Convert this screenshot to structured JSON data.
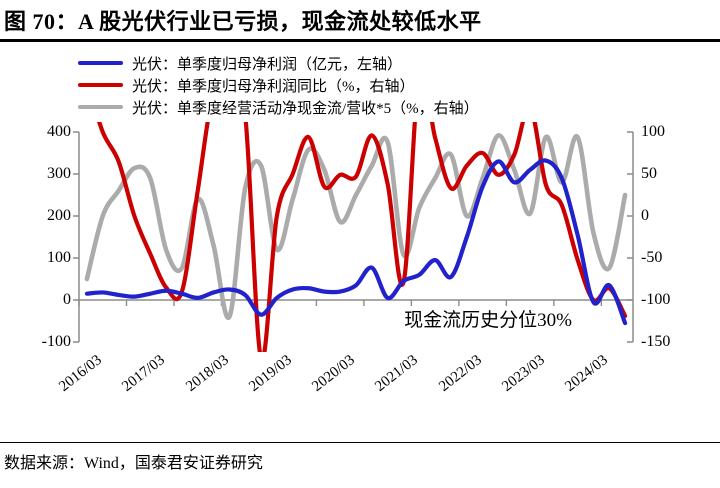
{
  "figure": {
    "title": "图 70：A 股光伏行业已亏损，现金流处较低水平",
    "source": "数据来源：Wind，国泰君安证券研究"
  },
  "legend": [
    {
      "label": "光伏：单季度归母净利润（亿元，左轴）",
      "color": "#2222CC"
    },
    {
      "label": "光伏：单季度归母净利润同比（%，右轴）",
      "color": "#CC0000"
    },
    {
      "label": "光伏：单季度经营活动净现金流/营收*5（%，右轴）",
      "color": "#ABABAB"
    }
  ],
  "annotation": {
    "text": "现金流历史分位30%"
  },
  "colors": {
    "axis": "#8C8C8C",
    "text": "#000000",
    "background": "#FFFFFF"
  },
  "chart_data": {
    "type": "line",
    "title": "图 70：A 股光伏行业已亏损，现金流处较低水平",
    "x_tick_labels": [
      "2016/03",
      "2017/03",
      "2018/03",
      "2019/03",
      "2020/03",
      "2021/03",
      "2022/03",
      "2023/03",
      "2024/03"
    ],
    "categories": [
      "2016/03",
      "2016/06",
      "2016/09",
      "2016/12",
      "2017/03",
      "2017/06",
      "2017/09",
      "2017/12",
      "2018/03",
      "2018/06",
      "2018/09",
      "2018/12",
      "2019/03",
      "2019/06",
      "2019/09",
      "2019/12",
      "2020/03",
      "2020/06",
      "2020/09",
      "2020/12",
      "2021/03",
      "2021/06",
      "2021/09",
      "2021/12",
      "2022/03",
      "2022/06",
      "2022/09",
      "2022/12",
      "2023/03",
      "2023/06",
      "2023/09",
      "2023/12",
      "2024/03",
      "2024/06",
      "2024/09"
    ],
    "left_axis": {
      "min": -100,
      "max": 400,
      "ticks": [
        400,
        300,
        200,
        100,
        0,
        -100
      ]
    },
    "right_axis": {
      "min": -150,
      "max": 100,
      "ticks": [
        100,
        50,
        0,
        -50,
        -100,
        -150
      ]
    },
    "grid": false,
    "legend_position": "top-left",
    "series": [
      {
        "name": "光伏：单季度归母净利润（亿元，左轴）",
        "axis": "left",
        "color": "#2222CC",
        "width": 4.2,
        "values": [
          15,
          18,
          12,
          8,
          15,
          22,
          15,
          5,
          18,
          25,
          12,
          -35,
          5,
          25,
          28,
          20,
          20,
          35,
          77,
          5,
          45,
          60,
          95,
          55,
          150,
          270,
          330,
          280,
          310,
          332,
          290,
          155,
          -5,
          35,
          -55
        ]
      },
      {
        "name": "光伏：单季度归母净利润同比（%，右轴）",
        "axis": "right",
        "color": "#CC0000",
        "width": 4.2,
        "values": [
          160,
          100,
          65,
          0,
          -45,
          -85,
          -90,
          30,
          150,
          170,
          120,
          -170,
          0,
          50,
          94,
          35,
          49,
          47,
          96,
          38,
          -79,
          170,
          93,
          33,
          60,
          75,
          49,
          73,
          130,
          37,
          13,
          -52,
          -100,
          -86,
          -119
        ]
      },
      {
        "name": "光伏：单季度经营活动净现金流/营收*5（%，右轴）",
        "axis": "right",
        "color": "#ABABAB",
        "width": 4.6,
        "values": [
          -75,
          0,
          30,
          57,
          45,
          -40,
          -62,
          20,
          -35,
          -120,
          33,
          60,
          -40,
          20,
          79,
          55,
          -7,
          25,
          60,
          88,
          -46,
          10,
          45,
          73,
          0,
          45,
          96,
          55,
          3,
          94,
          40,
          94,
          -20,
          -62,
          25
        ]
      }
    ]
  }
}
